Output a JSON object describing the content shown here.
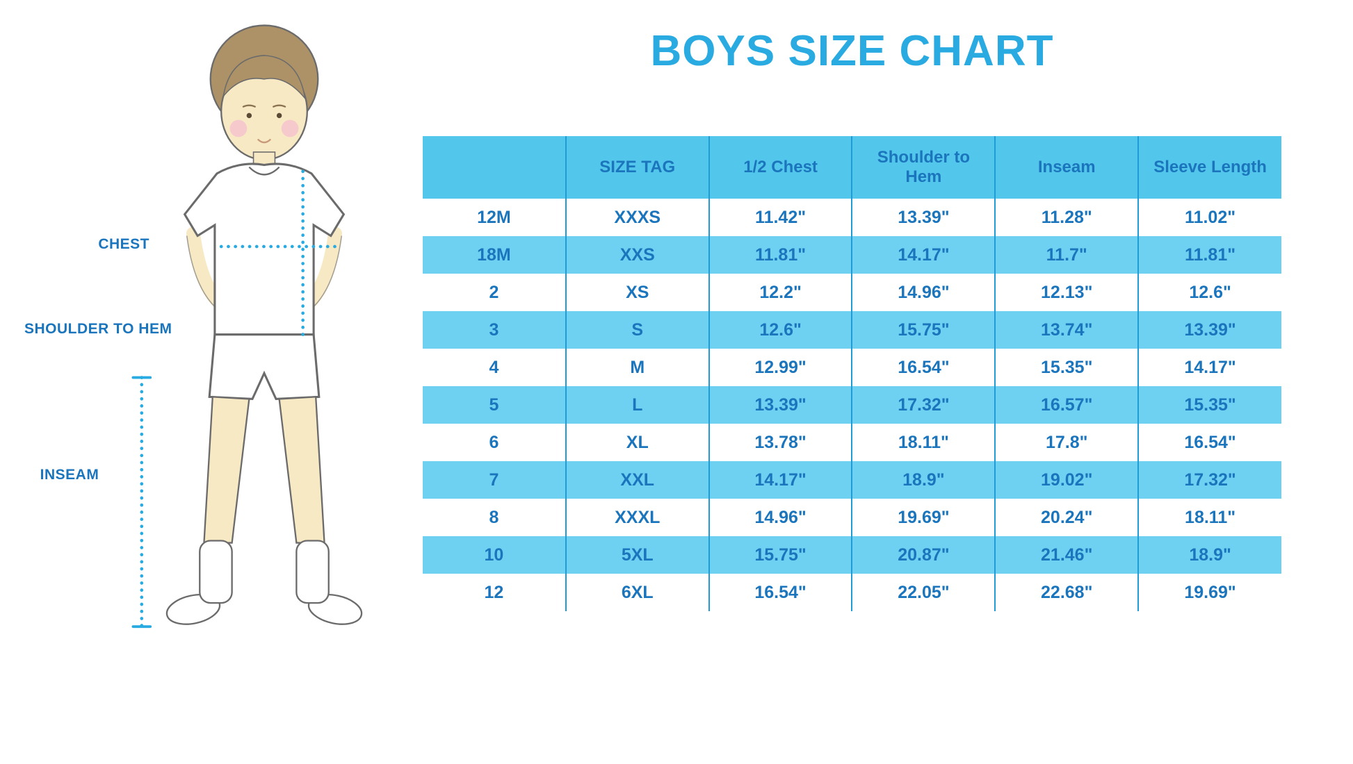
{
  "title": "BOYS SIZE CHART",
  "colors": {
    "accent": "#29ABE2",
    "header_bg": "#53C6EC",
    "row_alt_bg": "#6FD1F2",
    "text_blue": "#1B75BC",
    "grid_line": "#1F9CD6",
    "skin": "#F8E9C5",
    "hair": "#AD9268",
    "cheek": "#F6C3CE"
  },
  "figure": {
    "illustration": "boy-with-measurement-lines",
    "labels": {
      "chest": "CHEST",
      "shoulder_to_hem": "SHOULDER TO HEM",
      "inseam": "INSEAM"
    }
  },
  "chart_data": {
    "type": "table",
    "title": "BOYS SIZE CHART",
    "columns": [
      "",
      "SIZE TAG",
      "1/2 Chest",
      "Shoulder to Hem",
      "Inseam",
      "Sleeve Length"
    ],
    "rows": [
      [
        "12M",
        "XXXS",
        "11.42\"",
        "13.39\"",
        "11.28\"",
        "11.02\""
      ],
      [
        "18M",
        "XXS",
        "11.81\"",
        "14.17\"",
        "11.7\"",
        "11.81\""
      ],
      [
        "2",
        "XS",
        "12.2\"",
        "14.96\"",
        "12.13\"",
        "12.6\""
      ],
      [
        "3",
        "S",
        "12.6\"",
        "15.75\"",
        "13.74\"",
        "13.39\""
      ],
      [
        "4",
        "M",
        "12.99\"",
        "16.54\"",
        "15.35\"",
        "14.17\""
      ],
      [
        "5",
        "L",
        "13.39\"",
        "17.32\"",
        "16.57\"",
        "15.35\""
      ],
      [
        "6",
        "XL",
        "13.78\"",
        "18.11\"",
        "17.8\"",
        "16.54\""
      ],
      [
        "7",
        "XXL",
        "14.17\"",
        "18.9\"",
        "19.02\"",
        "17.32\""
      ],
      [
        "8",
        "XXXL",
        "14.96\"",
        "19.69\"",
        "20.24\"",
        "18.11\""
      ],
      [
        "10",
        "5XL",
        "15.75\"",
        "20.87\"",
        "21.46\"",
        "18.9\""
      ],
      [
        "12",
        "6XL",
        "16.54\"",
        "22.05\"",
        "22.68\"",
        "19.69\""
      ]
    ]
  }
}
